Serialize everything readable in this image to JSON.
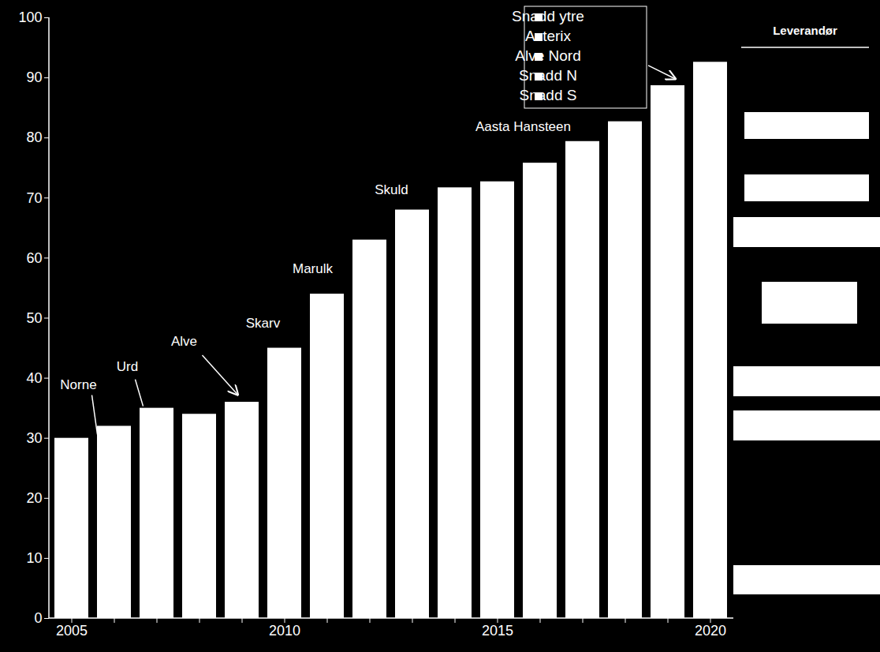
{
  "chart_data": {
    "type": "bar",
    "categories": [
      "2005",
      null,
      null,
      null,
      null,
      "2010",
      null,
      null,
      null,
      null,
      "2015",
      null,
      null,
      null,
      null,
      "2020"
    ],
    "values": [
      30,
      32,
      35,
      34,
      36,
      45,
      54,
      63,
      68,
      71.7,
      72.7,
      75.8,
      79.4,
      82.7,
      88.7,
      92.6
    ],
    "color": "#ffffff",
    "ylim": [
      0,
      100
    ],
    "yticks": [
      0,
      10,
      20,
      30,
      40,
      50,
      60,
      70,
      80,
      90,
      100
    ],
    "annotations": [
      "Norne",
      "Urd",
      "Alve",
      "Skarv",
      "Marulk",
      "Skuld",
      "Aasta Hansteen"
    ],
    "callout_labels": [
      "Snadd ytre",
      "Asterix",
      "Alve Nord",
      "Snadd N",
      "Snadd S"
    ],
    "side_header": "Leverandør"
  }
}
